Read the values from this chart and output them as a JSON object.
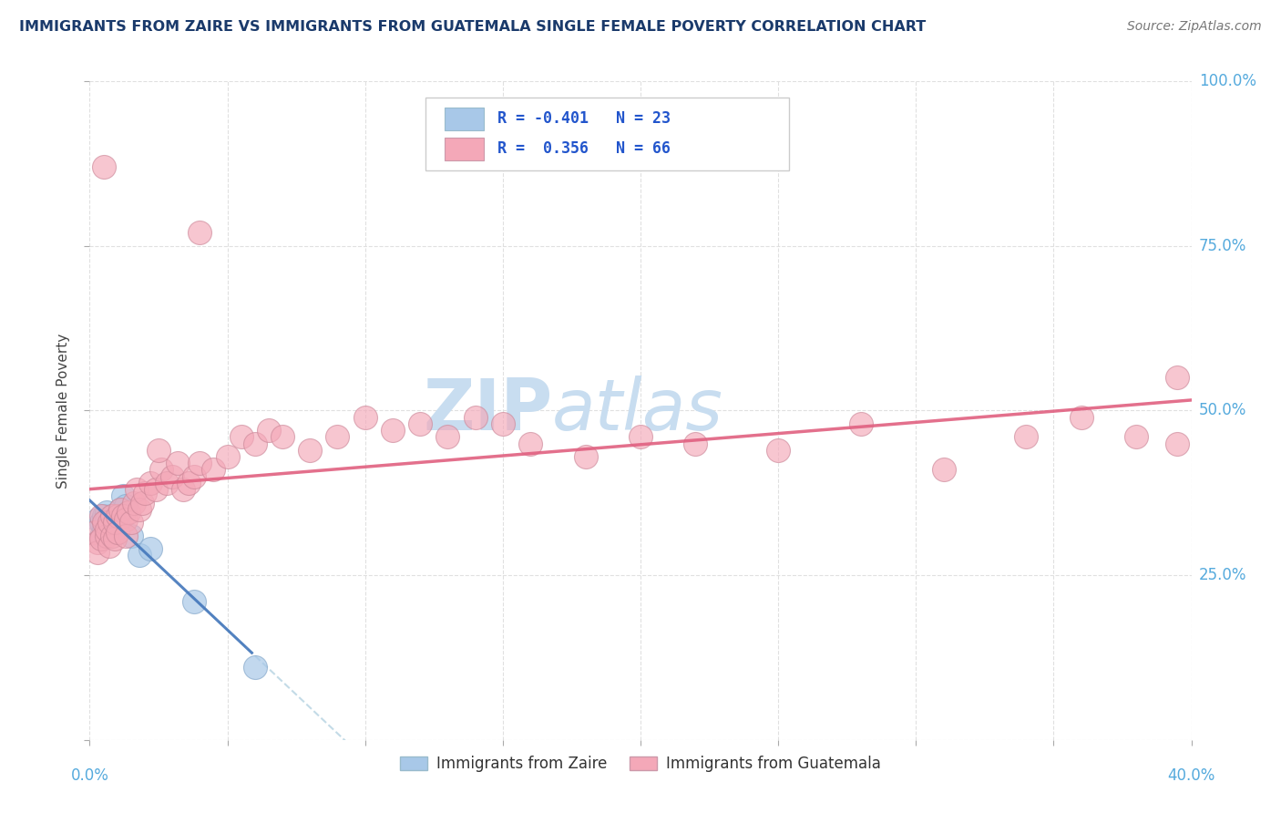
{
  "title": "IMMIGRANTS FROM ZAIRE VS IMMIGRANTS FROM GUATEMALA SINGLE FEMALE POVERTY CORRELATION CHART",
  "source": "Source: ZipAtlas.com",
  "ylabel": "Single Female Poverty",
  "blue_color": "#a8c8e8",
  "pink_color": "#f4a8b8",
  "blue_line_color": "#4477bb",
  "pink_line_color": "#e06080",
  "title_color": "#1a3a6b",
  "axis_tick_color": "#55aadd",
  "legend_text_color": "#2255cc",
  "watermark_color": "#c8ddf0",
  "blue_x": [
    0.003,
    0.004,
    0.004,
    0.005,
    0.005,
    0.006,
    0.006,
    0.007,
    0.007,
    0.008,
    0.008,
    0.009,
    0.009,
    0.01,
    0.01,
    0.011,
    0.012,
    0.013,
    0.015,
    0.018,
    0.022,
    0.038,
    0.06
  ],
  "blue_y": [
    0.335,
    0.33,
    0.31,
    0.34,
    0.32,
    0.345,
    0.335,
    0.33,
    0.325,
    0.34,
    0.32,
    0.335,
    0.315,
    0.34,
    0.33,
    0.35,
    0.37,
    0.355,
    0.31,
    0.28,
    0.29,
    0.21,
    0.11
  ],
  "pink_x": [
    0.002,
    0.003,
    0.003,
    0.004,
    0.004,
    0.005,
    0.005,
    0.006,
    0.006,
    0.007,
    0.007,
    0.008,
    0.008,
    0.009,
    0.009,
    0.01,
    0.01,
    0.011,
    0.012,
    0.013,
    0.013,
    0.014,
    0.015,
    0.016,
    0.017,
    0.018,
    0.019,
    0.02,
    0.022,
    0.024,
    0.026,
    0.028,
    0.03,
    0.032,
    0.034,
    0.036,
    0.038,
    0.04,
    0.045,
    0.05,
    0.055,
    0.06,
    0.065,
    0.07,
    0.08,
    0.09,
    0.1,
    0.11,
    0.12,
    0.13,
    0.14,
    0.15,
    0.16,
    0.18,
    0.2,
    0.22,
    0.25,
    0.28,
    0.31,
    0.34,
    0.36,
    0.38,
    0.395,
    0.395,
    0.04,
    0.025
  ],
  "pink_y": [
    0.315,
    0.3,
    0.285,
    0.34,
    0.305,
    0.87,
    0.33,
    0.31,
    0.32,
    0.33,
    0.295,
    0.34,
    0.31,
    0.305,
    0.33,
    0.34,
    0.315,
    0.35,
    0.34,
    0.335,
    0.31,
    0.345,
    0.33,
    0.36,
    0.38,
    0.35,
    0.36,
    0.375,
    0.39,
    0.38,
    0.41,
    0.39,
    0.4,
    0.42,
    0.38,
    0.39,
    0.4,
    0.42,
    0.41,
    0.43,
    0.46,
    0.45,
    0.47,
    0.46,
    0.44,
    0.46,
    0.49,
    0.47,
    0.48,
    0.46,
    0.49,
    0.48,
    0.45,
    0.43,
    0.46,
    0.45,
    0.44,
    0.48,
    0.41,
    0.46,
    0.49,
    0.46,
    0.55,
    0.45,
    0.77,
    0.44
  ],
  "xlim": [
    0.0,
    0.4
  ],
  "ylim": [
    0.0,
    1.0
  ],
  "yticks": [
    0.0,
    0.25,
    0.5,
    0.75,
    1.0
  ],
  "ytick_labels": [
    "",
    "25.0%",
    "50.0%",
    "75.0%",
    "100.0%"
  ],
  "xtick_labels": [
    "0.0%",
    "",
    "",
    "",
    "",
    "",
    "",
    "",
    "40.0%"
  ],
  "xticks": [
    0.0,
    0.05,
    0.1,
    0.15,
    0.2,
    0.25,
    0.3,
    0.35,
    0.4
  ]
}
